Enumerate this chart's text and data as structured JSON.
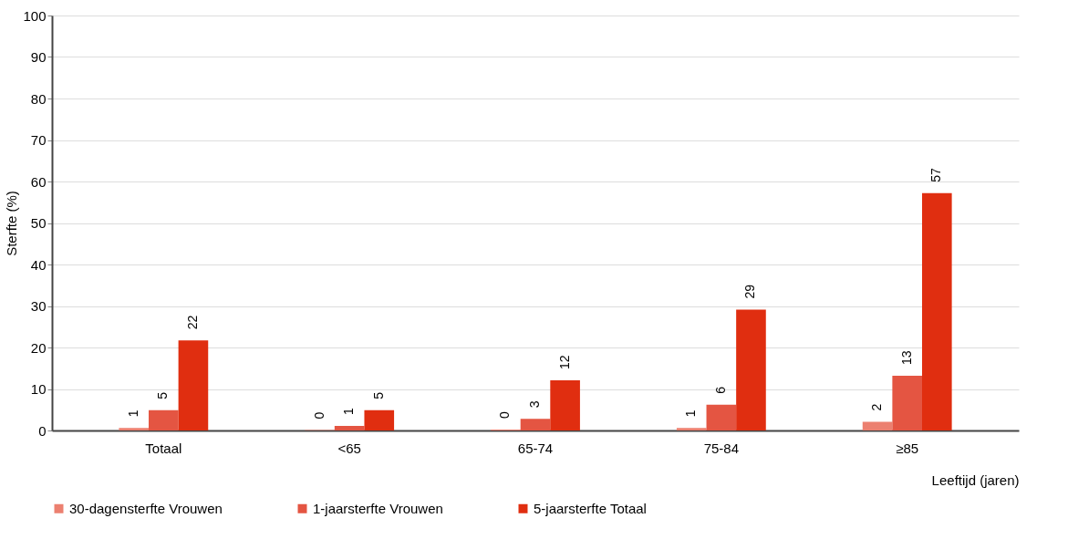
{
  "chart_data": {
    "type": "bar",
    "xlabel": "Leeftijd (jaren)",
    "ylabel": "Sterfte (%)",
    "categories": [
      "Totaal",
      "<65",
      "65-74",
      "75-84",
      "≥85"
    ],
    "series": [
      {
        "name": "30-dagensterfte Vrouwen",
        "color": "#ec8070",
        "values": [
          0.6,
          0.1,
          0.2,
          0.6,
          2.1
        ],
        "value_labels": [
          "1",
          "0",
          "0",
          "1",
          "2"
        ]
      },
      {
        "name": "1-jaarsterfte Vrouwen",
        "color": "#e45542",
        "values": [
          4.9,
          1.1,
          2.8,
          6.2,
          13.2
        ],
        "value_labels": [
          "5",
          "1",
          "3",
          "6",
          "13"
        ]
      },
      {
        "name": "5-jaarsterfte Totaal",
        "color": "#e02e10",
        "values": [
          21.7,
          4.9,
          12.1,
          29.1,
          57.2
        ],
        "value_labels": [
          "22",
          "5",
          "12",
          "29",
          "57"
        ]
      }
    ],
    "ylim": [
      0,
      100
    ],
    "yticks": [
      0,
      10,
      20,
      30,
      40,
      50,
      60,
      70,
      80,
      90,
      100
    ],
    "grid": "y",
    "legend": "bottom left"
  }
}
